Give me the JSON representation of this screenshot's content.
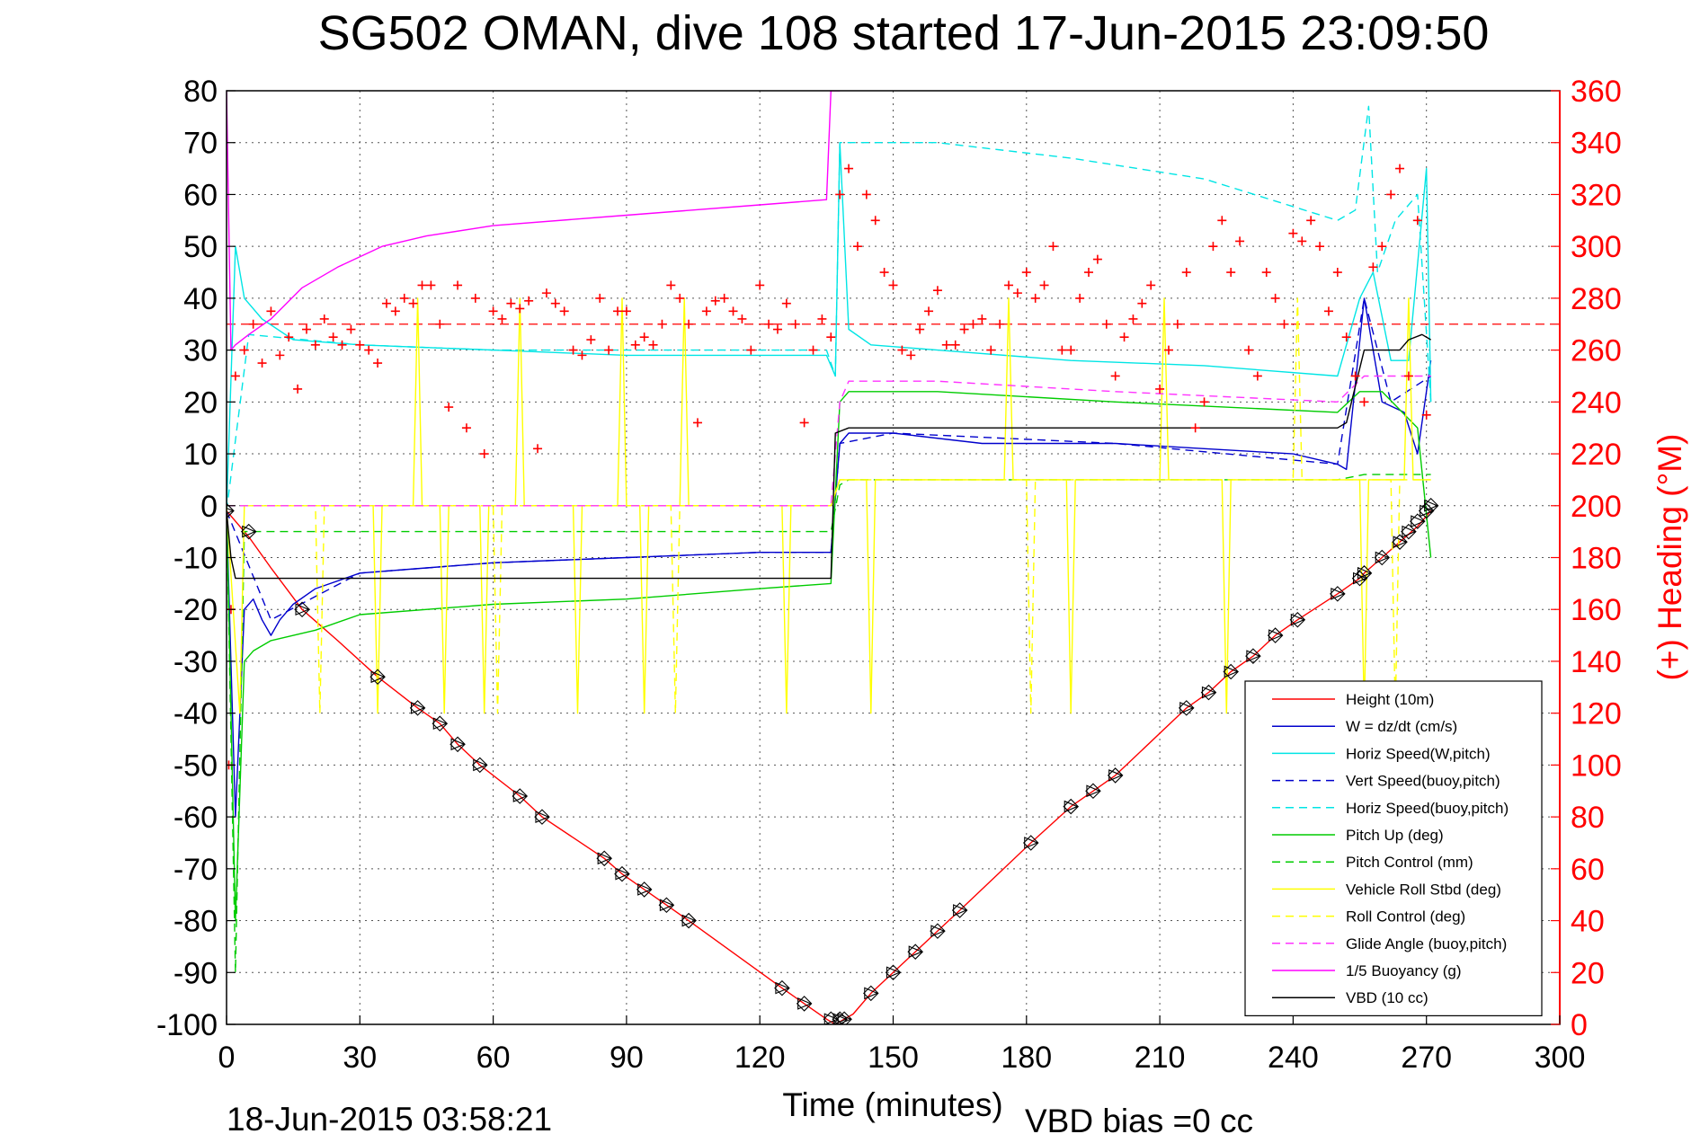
{
  "chart_data": {
    "type": "line",
    "title": "SG502 OMAN, dive 108 started 17-Jun-2015 23:09:50",
    "xlabel": "Time (minutes)",
    "ylabel": "",
    "y2label": "(+) Heading (°M)",
    "xlim": [
      0,
      300
    ],
    "ylim": [
      -100,
      80
    ],
    "y2lim": [
      0,
      360
    ],
    "xticks": [
      "0",
      "30",
      "60",
      "90",
      "120",
      "150",
      "180",
      "210",
      "240",
      "270",
      "300"
    ],
    "yticks": [
      "80",
      "70",
      "60",
      "50",
      "40",
      "30",
      "20",
      "10",
      "0",
      "-10",
      "-20",
      "-30",
      "-40",
      "-50",
      "-60",
      "-70",
      "-80",
      "-90",
      "-100"
    ],
    "y2ticks": [
      "360",
      "340",
      "320",
      "300",
      "280",
      "260",
      "240",
      "220",
      "200",
      "180",
      "160",
      "140",
      "120",
      "100",
      "80",
      "60",
      "40",
      "20",
      "0"
    ],
    "grid": true,
    "legend_position": "bottom-right",
    "footer_left": "18-Jun-2015 03:58:21",
    "footer_right": "VBD bias =0 cc",
    "colors": {
      "height": "#ff0000",
      "w": "#0000cc",
      "horiz": "#00e5e5",
      "pitch": "#00cc00",
      "roll": "#ffff00",
      "glide": "#ff33ff",
      "buoy": "#ff00ff",
      "vbd": "#000000",
      "heading": "#ff0000"
    },
    "series": [
      {
        "name": "Height (10m)",
        "key": "height",
        "style": "solid",
        "x": [
          0,
          2,
          5,
          10,
          17,
          25,
          34,
          43,
          48,
          52,
          57,
          66,
          71,
          85,
          89,
          94,
          99,
          104,
          125,
          130,
          135,
          137,
          139,
          141,
          145,
          150,
          155,
          160,
          165,
          181,
          190,
          195,
          200,
          216,
          221,
          226,
          231,
          236,
          241,
          250,
          255,
          256,
          260,
          264,
          268,
          271
        ],
        "y": [
          -1,
          -3,
          -6,
          -12,
          -20,
          -26,
          -33,
          -39,
          -42,
          -46,
          -50,
          -56,
          -60,
          -68,
          -71,
          -74,
          -77,
          -80,
          -93,
          -96,
          -99,
          -100,
          -99,
          -98,
          -94,
          -90,
          -86,
          -82,
          -78,
          -65,
          -58,
          -55,
          -52,
          -39,
          -36,
          -32,
          -29,
          -25,
          -22,
          -17,
          -14,
          -13,
          -10,
          -7,
          -4,
          -1
        ]
      },
      {
        "name": "W = dz/dt (cm/s)",
        "key": "w",
        "style": "solid",
        "x": [
          0,
          2,
          4,
          6,
          8,
          10,
          12,
          15,
          20,
          30,
          45,
          60,
          90,
          120,
          136,
          138,
          140,
          150,
          170,
          200,
          220,
          240,
          250,
          252,
          256,
          260,
          265,
          268,
          271
        ],
        "y": [
          -1,
          -60,
          -20,
          -18,
          -22,
          -25,
          -22,
          -19,
          -16,
          -13,
          -12,
          -11,
          -10,
          -9,
          -9,
          12,
          14,
          14,
          12,
          12,
          11,
          10,
          8,
          7,
          40,
          20,
          18,
          10,
          28
        ]
      },
      {
        "name": "Horiz Speed(W,pitch)",
        "key": "horiz",
        "style": "solid",
        "x": [
          0,
          2,
          4,
          8,
          15,
          30,
          60,
          90,
          120,
          135,
          137,
          138,
          140,
          145,
          160,
          190,
          220,
          250,
          255,
          258,
          262,
          266,
          270,
          271
        ],
        "y": [
          -1,
          50,
          40,
          36,
          32,
          31,
          30,
          29,
          29,
          29,
          25,
          70,
          34,
          31,
          30,
          28,
          27,
          25,
          40,
          45,
          28,
          28,
          65,
          20
        ]
      },
      {
        "name": "Vert Speed(buoy,pitch)",
        "key": "w",
        "style": "dashed",
        "x": [
          0,
          10,
          30,
          60,
          90,
          120,
          136,
          138,
          150,
          200,
          250,
          256,
          262,
          271
        ],
        "y": [
          -1,
          -22,
          -13,
          -11,
          -10,
          -9,
          -9,
          12,
          14,
          12,
          8,
          40,
          20,
          25
        ]
      },
      {
        "name": "Horiz Speed(buoy,pitch)",
        "key": "horiz",
        "style": "dashed",
        "x": [
          0,
          5,
          30,
          60,
          100,
          135,
          137,
          138,
          160,
          190,
          220,
          250,
          254,
          257,
          259,
          263,
          268,
          271
        ],
        "y": [
          -1,
          33,
          31,
          30,
          30,
          30,
          25,
          70,
          70,
          67,
          63,
          55,
          57,
          77,
          45,
          55,
          60,
          20
        ]
      },
      {
        "name": "Pitch Up (deg)",
        "key": "pitch",
        "style": "solid",
        "x": [
          0,
          2,
          4,
          6,
          10,
          20,
          30,
          60,
          90,
          120,
          136,
          138,
          140,
          160,
          200,
          250,
          255,
          260,
          268,
          271
        ],
        "y": [
          0,
          -80,
          -30,
          -28,
          -26,
          -24,
          -21,
          -19,
          -18,
          -16,
          -15,
          20,
          22,
          22,
          20,
          18,
          22,
          22,
          15,
          -10
        ]
      },
      {
        "name": "Pitch Control (mm)",
        "key": "pitch",
        "style": "dashed",
        "x": [
          0,
          2,
          4,
          10,
          136,
          138,
          140,
          250,
          256,
          271
        ],
        "y": [
          0,
          -90,
          -5,
          -5,
          -5,
          4,
          5,
          5,
          6,
          6
        ]
      },
      {
        "name": "Vehicle Roll Stbd (deg)",
        "key": "roll",
        "style": "solid",
        "x": [
          0,
          3,
          4,
          15,
          33,
          34,
          35,
          42,
          43,
          44,
          48,
          49,
          50,
          57,
          58,
          59,
          65,
          66,
          67,
          78,
          79,
          80,
          88,
          89,
          90,
          93,
          94,
          95,
          102,
          103,
          104,
          125,
          126,
          127,
          136,
          138,
          139,
          144,
          145,
          146,
          175,
          176,
          177,
          189,
          190,
          191,
          210,
          211,
          212,
          224,
          225,
          226,
          255,
          256,
          257,
          265,
          266,
          267,
          271
        ],
        "y": [
          0,
          -40,
          0,
          0,
          0,
          -40,
          0,
          0,
          40,
          0,
          0,
          -40,
          0,
          0,
          -40,
          0,
          0,
          40,
          0,
          0,
          -40,
          0,
          0,
          40,
          0,
          0,
          -40,
          0,
          0,
          40,
          0,
          0,
          -40,
          0,
          0,
          5,
          5,
          5,
          -40,
          5,
          5,
          40,
          5,
          5,
          -40,
          5,
          5,
          40,
          5,
          5,
          -40,
          5,
          5,
          -40,
          5,
          5,
          40,
          5,
          5
        ]
      },
      {
        "name": "Roll Control (deg)",
        "key": "roll",
        "style": "dashed",
        "x": [
          0,
          20,
          21,
          22,
          60,
          61,
          62,
          100,
          101,
          102,
          136,
          138,
          180,
          181,
          182,
          240,
          241,
          242,
          256,
          262,
          263,
          264,
          271
        ],
        "y": [
          0,
          0,
          -40,
          0,
          0,
          -40,
          0,
          0,
          -40,
          0,
          0,
          5,
          5,
          -40,
          5,
          5,
          40,
          5,
          5,
          5,
          -40,
          5,
          5
        ]
      },
      {
        "name": "Glide Angle (buoy,pitch)",
        "key": "glide",
        "style": "dashed",
        "x": [
          0,
          2,
          10,
          50,
          100,
          136,
          138,
          140,
          160,
          200,
          250,
          256,
          271
        ],
        "y": [
          0,
          0,
          0,
          0,
          0,
          0,
          20,
          24,
          24,
          22,
          20,
          25,
          25
        ]
      },
      {
        "name": "1/5 Buoyancy (g)",
        "key": "buoy",
        "style": "solid",
        "x": [
          0,
          1,
          2,
          5,
          10,
          17,
          25,
          35,
          45,
          60,
          90,
          120,
          135,
          136,
          137,
          138
        ],
        "y": [
          80,
          30,
          31,
          33,
          36,
          42,
          46,
          50,
          52,
          54,
          56,
          58,
          59,
          80,
          80,
          80
        ]
      },
      {
        "name": "VBD (10 cc)",
        "key": "vbd",
        "style": "solid",
        "x": [
          0,
          1,
          2,
          3,
          34,
          136,
          137,
          140,
          250,
          252,
          256,
          264,
          266,
          269,
          271
        ],
        "y": [
          -1,
          -10,
          -14,
          -14,
          -14,
          -14,
          14,
          15,
          15,
          16,
          30,
          30,
          32,
          33,
          32
        ]
      }
    ],
    "heading": {
      "name": "(+) Heading (°M)",
      "x": [
        0.5,
        1,
        2,
        4,
        6,
        8,
        10,
        12,
        14,
        16,
        18,
        20,
        22,
        24,
        26,
        28,
        30,
        32,
        34,
        36,
        38,
        40,
        42,
        44,
        46,
        48,
        50,
        52,
        54,
        56,
        58,
        60,
        62,
        64,
        66,
        68,
        70,
        72,
        74,
        76,
        78,
        80,
        82,
        84,
        86,
        88,
        90,
        92,
        94,
        96,
        98,
        100,
        102,
        104,
        106,
        108,
        110,
        112,
        114,
        116,
        118,
        120,
        122,
        124,
        126,
        128,
        130,
        132,
        134,
        136,
        138,
        140,
        142,
        144,
        146,
        148,
        150,
        152,
        154,
        156,
        158,
        160,
        162,
        164,
        166,
        168,
        170,
        172,
        174,
        176,
        178,
        180,
        182,
        184,
        186,
        188,
        190,
        192,
        194,
        196,
        198,
        200,
        202,
        204,
        206,
        208,
        210,
        212,
        214,
        216,
        218,
        220,
        222,
        224,
        226,
        228,
        230,
        232,
        234,
        236,
        238,
        240,
        242,
        244,
        246,
        248,
        250,
        252,
        254,
        256,
        258,
        260,
        262,
        264,
        266,
        268,
        270
      ],
      "y": [
        100,
        160,
        250,
        260,
        270,
        255,
        275,
        258,
        265,
        245,
        268,
        262,
        272,
        265,
        262,
        268,
        262,
        260,
        255,
        278,
        275,
        280,
        278,
        285,
        285,
        270,
        238,
        285,
        230,
        280,
        220,
        275,
        272,
        278,
        276,
        279,
        222,
        282,
        278,
        275,
        260,
        258,
        264,
        280,
        260,
        275,
        275,
        262,
        265,
        262,
        270,
        285,
        280,
        270,
        232,
        275,
        279,
        280,
        275,
        272,
        260,
        285,
        270,
        268,
        278,
        270,
        232,
        260,
        272,
        265,
        320,
        330,
        300,
        320,
        310,
        290,
        285,
        260,
        258,
        268,
        275,
        283,
        262,
        262,
        268,
        270,
        272,
        260,
        270,
        285,
        282,
        290,
        280,
        285,
        300,
        260,
        260,
        280,
        290,
        295,
        270,
        250,
        265,
        272,
        278,
        285,
        245,
        260,
        270,
        290,
        230,
        240,
        300,
        310,
        290,
        302,
        260,
        250,
        290,
        280,
        270,
        305,
        302,
        310,
        300,
        275,
        290,
        265,
        250,
        240,
        292,
        300,
        320,
        330,
        250,
        310,
        235
      ]
    },
    "heading_ref": 270,
    "markers": {
      "x": [
        0,
        5,
        17,
        34,
        43,
        48,
        52,
        57,
        66,
        71,
        85,
        89,
        94,
        99,
        104,
        125,
        130,
        136,
        138,
        139,
        145,
        150,
        155,
        160,
        165,
        181,
        190,
        195,
        200,
        216,
        221,
        226,
        231,
        236,
        241,
        250,
        255,
        256,
        260,
        264,
        266,
        268,
        270,
        271
      ],
      "y": [
        -1,
        -5,
        -20,
        -33,
        -39,
        -42,
        -46,
        -50,
        -56,
        -60,
        -68,
        -71,
        -74,
        -77,
        -80,
        -93,
        -96,
        -99,
        -99,
        -99,
        -94,
        -90,
        -86,
        -82,
        -78,
        -65,
        -58,
        -55,
        -52,
        -39,
        -36,
        -32,
        -29,
        -25,
        -22,
        -17,
        -14,
        -13,
        -10,
        -7,
        -5,
        -3,
        -1,
        0
      ]
    }
  }
}
